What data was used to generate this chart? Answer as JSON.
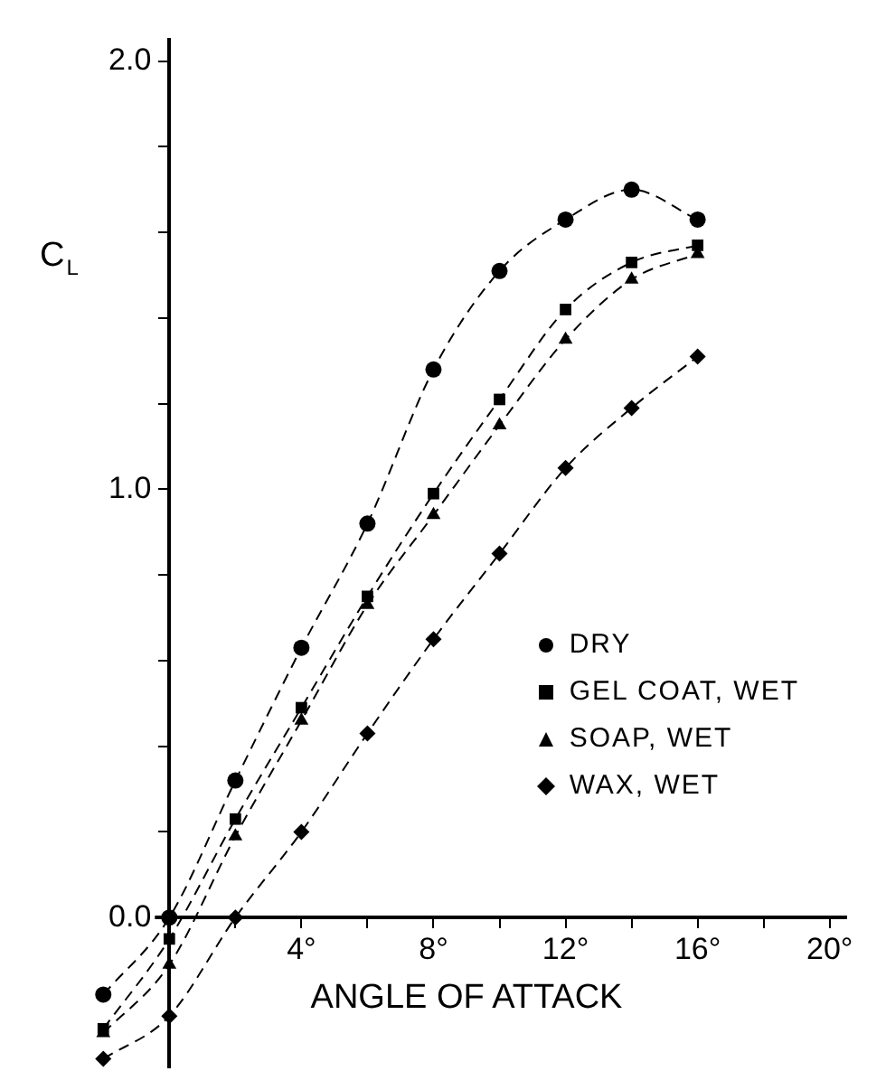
{
  "chart_data": {
    "type": "line",
    "xlabel": "ANGLE OF ATTACK",
    "ylabel": "C$_{L}$",
    "x": [
      -2,
      0,
      2,
      4,
      6,
      8,
      10,
      12,
      14,
      16
    ],
    "xlim": [
      -2.5,
      20.5
    ],
    "xticks": [
      {
        "value": 2,
        "label": null
      },
      {
        "value": 4,
        "label": "4°"
      },
      {
        "value": 6,
        "label": null
      },
      {
        "value": 8,
        "label": "8°"
      },
      {
        "value": 10,
        "label": null
      },
      {
        "value": 12,
        "label": "12°"
      },
      {
        "value": 14,
        "label": null
      },
      {
        "value": 16,
        "label": "16°"
      },
      {
        "value": 18,
        "label": null
      },
      {
        "value": 20,
        "label": "20°"
      }
    ],
    "ylim": [
      -0.35,
      2.05
    ],
    "yticks": [
      {
        "value": 0,
        "label": "0.0"
      },
      {
        "value": 0.2,
        "label": null
      },
      {
        "value": 0.4,
        "label": null
      },
      {
        "value": 0.6,
        "label": null
      },
      {
        "value": 0.8,
        "label": null
      },
      {
        "value": 1,
        "label": "1.0"
      },
      {
        "value": 1.2,
        "label": null
      },
      {
        "value": 1.4,
        "label": null
      },
      {
        "value": 1.6,
        "label": null
      },
      {
        "value": 1.8,
        "label": null
      },
      {
        "value": 2,
        "label": "2.0"
      }
    ],
    "series": [
      {
        "name": "DRY",
        "color": "#000000",
        "marker": "circle",
        "values": [
          -0.18,
          0,
          0.32,
          0.63,
          0.92,
          1.28,
          1.51,
          1.63,
          1.7,
          1.63
        ]
      },
      {
        "name": "GEL COAT, WET",
        "color": "#000000",
        "marker": "square",
        "values": [
          -0.26,
          -0.05,
          0.23,
          0.49,
          0.75,
          0.99,
          1.21,
          1.42,
          1.53,
          1.57
        ]
      },
      {
        "name": "SOAP, WET",
        "color": "#000000",
        "marker": "triangle",
        "values": [
          -0.27,
          -0.11,
          0.19,
          0.46,
          0.73,
          0.94,
          1.15,
          1.35,
          1.49,
          1.55
        ]
      },
      {
        "name": "WAX, WET",
        "color": "#000000",
        "marker": "diamond",
        "values": [
          -0.33,
          -0.23,
          0,
          0.2,
          0.43,
          0.65,
          0.85,
          1.05,
          1.19,
          1.31
        ]
      }
    ],
    "line_style": "dashed",
    "grid": false,
    "legend": "right"
  }
}
